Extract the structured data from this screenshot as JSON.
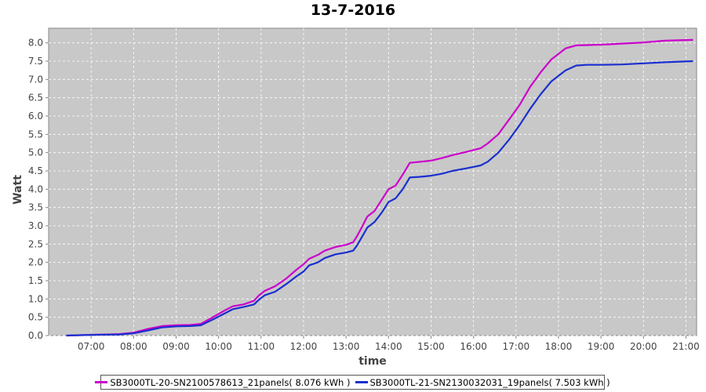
{
  "chart_data": {
    "type": "line",
    "title": "13-7-2016",
    "xlabel": "time",
    "ylabel": "Watt",
    "x_ticks": [
      "07:00",
      "08:00",
      "09:00",
      "10:00",
      "11:00",
      "12:00",
      "13:00",
      "14:00",
      "15:00",
      "16:00",
      "17:00",
      "18:00",
      "19:00",
      "20:00",
      "21:00"
    ],
    "y_ticks": [
      "0.0",
      "0.5",
      "1.0",
      "1.5",
      "2.0",
      "2.5",
      "3.0",
      "3.5",
      "4.0",
      "4.5",
      "5.0",
      "5.5",
      "6.0",
      "6.5",
      "7.0",
      "7.5",
      "8.0"
    ],
    "xlim": [
      "06:00",
      "21:15"
    ],
    "ylim": [
      0,
      8.4
    ],
    "grid": true,
    "legend_position": "bottom",
    "background": "#c8c8c8",
    "series": [
      {
        "name": "SB3000TL-20-SN2100578613_21panels( 8.076 kWh )",
        "color": "#cc00cc",
        "points": [
          [
            "06:25",
            0.0
          ],
          [
            "07:00",
            0.02
          ],
          [
            "07:40",
            0.04
          ],
          [
            "08:00",
            0.08
          ],
          [
            "08:20",
            0.18
          ],
          [
            "08:40",
            0.26
          ],
          [
            "09:00",
            0.28
          ],
          [
            "09:20",
            0.29
          ],
          [
            "09:35",
            0.32
          ],
          [
            "09:50",
            0.48
          ],
          [
            "10:10",
            0.7
          ],
          [
            "10:20",
            0.8
          ],
          [
            "10:35",
            0.85
          ],
          [
            "10:50",
            0.95
          ],
          [
            "10:57",
            1.1
          ],
          [
            "11:05",
            1.22
          ],
          [
            "11:20",
            1.35
          ],
          [
            "11:35",
            1.55
          ],
          [
            "11:50",
            1.8
          ],
          [
            "12:00",
            1.95
          ],
          [
            "12:08",
            2.1
          ],
          [
            "12:20",
            2.2
          ],
          [
            "12:30",
            2.32
          ],
          [
            "12:45",
            2.42
          ],
          [
            "13:00",
            2.48
          ],
          [
            "13:10",
            2.55
          ],
          [
            "13:15",
            2.7
          ],
          [
            "13:22",
            2.95
          ],
          [
            "13:30",
            3.25
          ],
          [
            "13:40",
            3.4
          ],
          [
            "13:50",
            3.7
          ],
          [
            "14:00",
            4.0
          ],
          [
            "14:10",
            4.1
          ],
          [
            "14:20",
            4.4
          ],
          [
            "14:30",
            4.72
          ],
          [
            "14:45",
            4.75
          ],
          [
            "15:00",
            4.78
          ],
          [
            "15:15",
            4.85
          ],
          [
            "15:30",
            4.93
          ],
          [
            "15:50",
            5.02
          ],
          [
            "16:10",
            5.12
          ],
          [
            "16:20",
            5.25
          ],
          [
            "16:35",
            5.5
          ],
          [
            "16:50",
            5.9
          ],
          [
            "17:05",
            6.3
          ],
          [
            "17:20",
            6.8
          ],
          [
            "17:35",
            7.2
          ],
          [
            "17:50",
            7.55
          ],
          [
            "18:10",
            7.85
          ],
          [
            "18:25",
            7.93
          ],
          [
            "18:40",
            7.94
          ],
          [
            "19:00",
            7.95
          ],
          [
            "19:30",
            7.98
          ],
          [
            "20:00",
            8.01
          ],
          [
            "20:30",
            8.06
          ],
          [
            "21:10",
            8.08
          ]
        ]
      },
      {
        "name": "SB3000TL-21-SN2130032031_19panels( 7.503 kWh )",
        "color": "#1a2fcf",
        "points": [
          [
            "06:25",
            0.0
          ],
          [
            "07:00",
            0.02
          ],
          [
            "07:40",
            0.03
          ],
          [
            "08:00",
            0.06
          ],
          [
            "08:20",
            0.14
          ],
          [
            "08:40",
            0.22
          ],
          [
            "09:00",
            0.25
          ],
          [
            "09:20",
            0.26
          ],
          [
            "09:35",
            0.28
          ],
          [
            "09:50",
            0.42
          ],
          [
            "10:10",
            0.62
          ],
          [
            "10:20",
            0.72
          ],
          [
            "10:35",
            0.78
          ],
          [
            "10:50",
            0.85
          ],
          [
            "10:57",
            0.98
          ],
          [
            "11:05",
            1.1
          ],
          [
            "11:20",
            1.2
          ],
          [
            "11:35",
            1.4
          ],
          [
            "11:50",
            1.62
          ],
          [
            "12:00",
            1.75
          ],
          [
            "12:08",
            1.92
          ],
          [
            "12:20",
            2.0
          ],
          [
            "12:30",
            2.12
          ],
          [
            "12:45",
            2.22
          ],
          [
            "13:00",
            2.27
          ],
          [
            "13:10",
            2.32
          ],
          [
            "13:15",
            2.45
          ],
          [
            "13:22",
            2.68
          ],
          [
            "13:30",
            2.95
          ],
          [
            "13:40",
            3.1
          ],
          [
            "13:50",
            3.35
          ],
          [
            "14:00",
            3.65
          ],
          [
            "14:10",
            3.75
          ],
          [
            "14:20",
            4.0
          ],
          [
            "14:30",
            4.32
          ],
          [
            "14:45",
            4.34
          ],
          [
            "15:00",
            4.37
          ],
          [
            "15:15",
            4.42
          ],
          [
            "15:30",
            4.5
          ],
          [
            "15:50",
            4.57
          ],
          [
            "16:10",
            4.65
          ],
          [
            "16:20",
            4.75
          ],
          [
            "16:35",
            5.0
          ],
          [
            "16:50",
            5.35
          ],
          [
            "17:05",
            5.75
          ],
          [
            "17:20",
            6.2
          ],
          [
            "17:35",
            6.6
          ],
          [
            "17:50",
            6.95
          ],
          [
            "18:10",
            7.25
          ],
          [
            "18:25",
            7.38
          ],
          [
            "18:40",
            7.4
          ],
          [
            "19:00",
            7.4
          ],
          [
            "19:30",
            7.41
          ],
          [
            "20:00",
            7.44
          ],
          [
            "20:30",
            7.47
          ],
          [
            "21:10",
            7.5
          ]
        ]
      }
    ]
  }
}
